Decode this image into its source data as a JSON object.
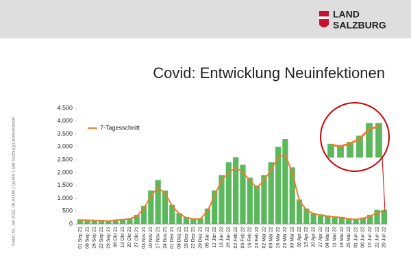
{
  "header": {
    "logo_line1": "LAND",
    "logo_line2": "SALZBURG"
  },
  "side_note": "Stand: 04. Juli 2022, 08.30 Uhr | Quelle: Land Salzburg/Landesstatistik",
  "chart_data": {
    "type": "bar",
    "title": "Covid: Entwicklung Neuinfektionen",
    "categories": [
      "01 Sep 21",
      "08 Sep 21",
      "15 Sep 21",
      "22 Sep 21",
      "29 Sep 21",
      "06 Okt 21",
      "13 Okt 21",
      "20 Okt 21",
      "27 Okt 21",
      "03 Nov 21",
      "10 Nov 21",
      "17 Nov 21",
      "24 Nov 21",
      "01 Dez 21",
      "08 Dez 21",
      "15 Dez 21",
      "22 Dez 21",
      "29 Dez 21",
      "05 Jän 22",
      "12 Jän 22",
      "19 Jän 22",
      "26 Jän 22",
      "02 Feb 22",
      "09 Feb 22",
      "16 Feb 22",
      "23 Feb 22",
      "02 Mär 22",
      "09 Mär 22",
      "16 Mär 22",
      "23 Mär 22",
      "30 Mär 22",
      "06 Apr 22",
      "13 Apr 22",
      "20 Apr 22",
      "27 Apr 22",
      "04 Mai 22",
      "11 Mai 22",
      "18 Mai 22",
      "25 Mai 22",
      "01 Jun 22",
      "08 Jun 22",
      "15 Jun 22",
      "22 Jun 22",
      "29 Jun 22"
    ],
    "values": [
      180,
      160,
      150,
      140,
      130,
      160,
      190,
      230,
      350,
      700,
      1300,
      1700,
      1300,
      750,
      420,
      260,
      210,
      230,
      600,
      1300,
      1900,
      2400,
      2600,
      2300,
      1800,
      1500,
      1900,
      2400,
      3000,
      3300,
      2200,
      950,
      600,
      420,
      380,
      330,
      300,
      270,
      220,
      200,
      250,
      350,
      550,
      550
    ],
    "color": "#5cb85c",
    "line": {
      "name": "7-Tagesschnitt",
      "color": "#ed7d31",
      "values": [
        150,
        150,
        140,
        130,
        120,
        150,
        170,
        200,
        300,
        600,
        1100,
        1400,
        1200,
        700,
        400,
        250,
        200,
        200,
        500,
        1100,
        1700,
        2000,
        2200,
        2000,
        1700,
        1400,
        1700,
        2100,
        2600,
        2700,
        2000,
        900,
        550,
        400,
        350,
        300,
        280,
        250,
        200,
        180,
        220,
        300,
        450,
        500
      ]
    },
    "ylim": [
      0,
      4500
    ],
    "yticks": [
      0,
      500,
      {
        "value": 1000,
        "label": "1.000"
      },
      {
        "value": 1500,
        "label": "1.500"
      },
      {
        "value": 2000,
        "label": "2.000"
      },
      {
        "value": 2500,
        "label": "2.500"
      },
      {
        "value": 3000,
        "label": "3.000"
      },
      {
        "value": 3500,
        "label": "3.500"
      },
      {
        "value": 4000,
        "label": "4.000"
      },
      {
        "value": 4500,
        "label": "4.500"
      }
    ],
    "legend": "top-left"
  }
}
